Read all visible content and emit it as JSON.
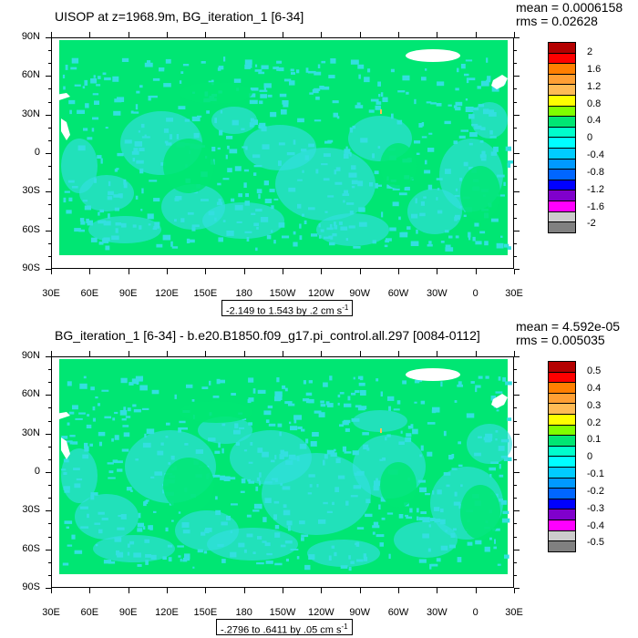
{
  "panels": [
    {
      "title": "UISOP at z=1968.9m, BG_iteration_1 [6-34]",
      "mean": "mean = 0.0006158",
      "rms": "rms = 0.02628",
      "range_label": "-2.149 to 1.543 by .2 cm s",
      "range_sup": "-1",
      "legend_labels": [
        "2",
        "1.6",
        "1.2",
        "0.8",
        "0.4",
        "0",
        "-0.4",
        "-0.8",
        "-1.2",
        "-1.6",
        "-2"
      ]
    },
    {
      "title": "BG_iteration_1 [6-34] - b.e20.B1850.f09_g17.pi_control.all.297 [0084-0112]",
      "mean": "mean = 4.592e-05",
      "rms": "rms = 0.005035",
      "range_label": "-.2796 to .6411 by .05 cm s",
      "range_sup": "-1",
      "legend_labels": [
        "0.5",
        "0.4",
        "0.3",
        "0.2",
        "0.1",
        "0",
        "-0.1",
        "-0.2",
        "-0.3",
        "-0.4",
        "-0.5"
      ]
    }
  ],
  "lat_labels": [
    "90N",
    "60N",
    "30N",
    "0",
    "30S",
    "60S",
    "90S"
  ],
  "lon_labels": [
    "30E",
    "60E",
    "90E",
    "120E",
    "150E",
    "180",
    "150W",
    "120W",
    "90W",
    "60W",
    "30W",
    "0",
    "30E"
  ],
  "colors": {
    "land": "#00e673",
    "anomaly": "#33dfe0",
    "legend": [
      "#b40000",
      "#ff0000",
      "#ff7f00",
      "#ff9f33",
      "#ffbb55",
      "#ffff00",
      "#7fff00",
      "#00e673",
      "#00ffcc",
      "#00ffff",
      "#00ccff",
      "#0099ff",
      "#0066ff",
      "#0000ff",
      "#8000cc",
      "#ff00ff",
      "#cccccc",
      "#808080"
    ]
  }
}
